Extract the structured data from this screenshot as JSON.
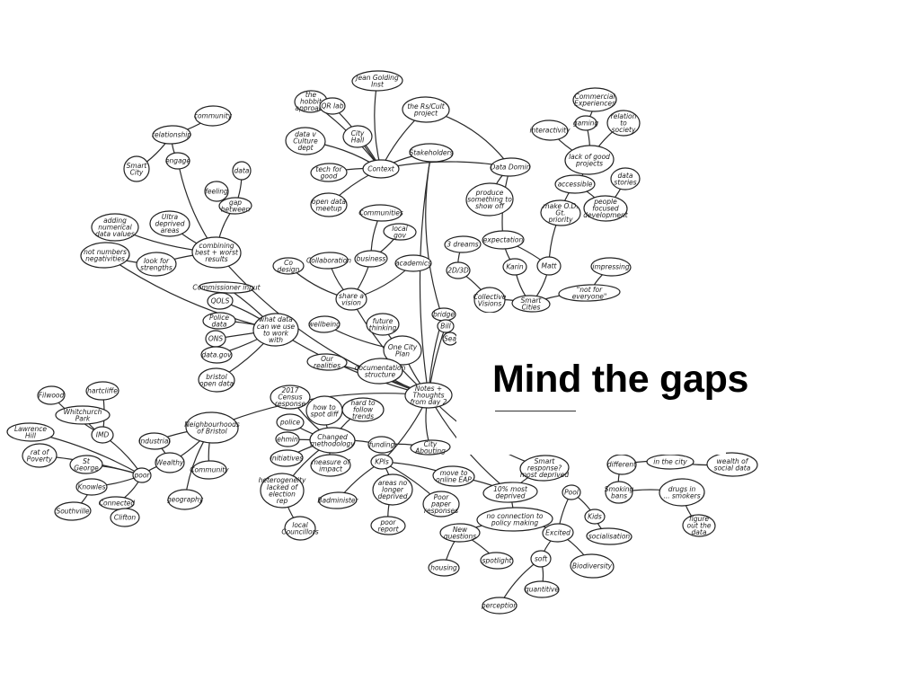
{
  "slide": {
    "title": "Mind the gaps"
  },
  "mindmap": {
    "nodes": [
      {
        "id": "hobbit",
        "text": "the hobbit approach"
      },
      {
        "id": "jean",
        "text": "Jean Golding Inst"
      },
      {
        "id": "qrlab",
        "text": "QR lab"
      },
      {
        "id": "rsc",
        "text": "the Rs/Cult project"
      },
      {
        "id": "datavc",
        "text": "data v Culture dept"
      },
      {
        "id": "cityhall",
        "text": "City Hall"
      },
      {
        "id": "techgood",
        "text": "tech for good"
      },
      {
        "id": "context",
        "text": "Context"
      },
      {
        "id": "opendata",
        "text": "open data meetup"
      },
      {
        "id": "stake",
        "text": "Stakeholders"
      },
      {
        "id": "datadom",
        "text": "Data Domin"
      },
      {
        "id": "commercial",
        "text": "Commercial Experiences"
      },
      {
        "id": "gaming",
        "text": "gaming"
      },
      {
        "id": "relation",
        "text": "relation to society"
      },
      {
        "id": "interact",
        "text": "interactivity"
      },
      {
        "id": "lackgood",
        "text": "lack of good projects"
      },
      {
        "id": "datastories",
        "text": "data stories"
      },
      {
        "id": "accessible",
        "text": "accessible"
      },
      {
        "id": "peoplefocused",
        "text": "people focused development"
      },
      {
        "id": "makeod",
        "text": "make O.D. Gt. priority"
      },
      {
        "id": "producesomething",
        "text": "produce something to show off"
      },
      {
        "id": "expectation",
        "text": "expectation"
      },
      {
        "id": "karin",
        "text": "Karin"
      },
      {
        "id": "matt",
        "text": "Matt"
      },
      {
        "id": "impressing",
        "text": "impressing"
      },
      {
        "id": "notforeveryone",
        "text": "\"not for everyone\""
      },
      {
        "id": "threedreams",
        "text": "3 dreams"
      },
      {
        "id": "twod",
        "text": "2D/3D"
      },
      {
        "id": "collectivevisions",
        "text": "Collective Visions"
      },
      {
        "id": "smartcities",
        "text": "Smart Cities"
      },
      {
        "id": "relationship",
        "text": "relationship"
      },
      {
        "id": "community",
        "text": "community"
      },
      {
        "id": "smartcity",
        "text": "Smart City"
      },
      {
        "id": "engage",
        "text": "engage"
      },
      {
        "id": "feeling",
        "text": "feeling"
      },
      {
        "id": "data",
        "text": "data"
      },
      {
        "id": "gapbetween",
        "text": "gap between"
      },
      {
        "id": "adding",
        "text": "adding numerical data values"
      },
      {
        "id": "deprived",
        "text": "Ultra deprived areas"
      },
      {
        "id": "combining",
        "text": "combining best + worst results"
      },
      {
        "id": "notnumbers",
        "text": "not numbers negativities"
      },
      {
        "id": "lookfor",
        "text": "look for strengths"
      },
      {
        "id": "codesign",
        "text": "Co design"
      },
      {
        "id": "communitiesN",
        "text": "Communities"
      },
      {
        "id": "localgov",
        "text": "local gov"
      },
      {
        "id": "collaboration",
        "text": "Collaboration"
      },
      {
        "id": "business",
        "text": "business"
      },
      {
        "id": "academics",
        "text": "academics"
      },
      {
        "id": "sharevision",
        "text": "share a vision"
      },
      {
        "id": "commissioner",
        "text": "Commissioner input"
      },
      {
        "id": "qols",
        "text": "QOLS"
      },
      {
        "id": "police",
        "text": "Police data"
      },
      {
        "id": "ons",
        "text": "ONS"
      },
      {
        "id": "datagov",
        "text": "data.gov"
      },
      {
        "id": "bristolopen",
        "text": "bristol open data"
      },
      {
        "id": "whatdata",
        "text": "what data can we use to work with"
      },
      {
        "id": "wellbeing",
        "text": "wellbeing"
      },
      {
        "id": "futurethinking",
        "text": "future thinking"
      },
      {
        "id": "onecity",
        "text": "One City Plan"
      },
      {
        "id": "ourrealities",
        "text": "Our realities"
      },
      {
        "id": "documentation",
        "text": "documentation structure"
      },
      {
        "id": "notes",
        "text": "Notes + Thoughts from day 2"
      },
      {
        "id": "bridge",
        "text": "bridge"
      },
      {
        "id": "bill",
        "text": "Bill"
      },
      {
        "id": "sea",
        "text": "Sea"
      },
      {
        "id": "filwood",
        "text": "Filwood"
      },
      {
        "id": "hartcliffe",
        "text": "hartcliffe"
      },
      {
        "id": "whitchurch",
        "text": "Whitchurch Park"
      },
      {
        "id": "lawrence",
        "text": "Lawrence Hill"
      },
      {
        "id": "imd",
        "text": "IMD"
      },
      {
        "id": "ratofpoverty",
        "text": "rat of Poverty"
      },
      {
        "id": "stgeorge",
        "text": "St George"
      },
      {
        "id": "knowles",
        "text": "Knowles"
      },
      {
        "id": "connected",
        "text": "Connected"
      },
      {
        "id": "poor",
        "text": "poor"
      },
      {
        "id": "southville",
        "text": "Southville"
      },
      {
        "id": "clifton",
        "text": "Clifton"
      },
      {
        "id": "wealthy",
        "text": "Wealthy"
      },
      {
        "id": "industrial",
        "text": "industrial"
      },
      {
        "id": "neighbourhoods",
        "text": "Neighbourhoods of Bristol"
      },
      {
        "id": "communityL",
        "text": "Community"
      },
      {
        "id": "geography",
        "text": "geography"
      },
      {
        "id": "census2017",
        "text": "2017 Census response"
      },
      {
        "id": "police2",
        "text": "police"
      },
      {
        "id": "ehmin",
        "text": "ehmin"
      },
      {
        "id": "initiatives",
        "text": "initiatives"
      },
      {
        "id": "howto",
        "text": "how to spot diff"
      },
      {
        "id": "hardtofollow",
        "text": "hard to follow trends"
      },
      {
        "id": "changed",
        "text": "Changed methodology"
      },
      {
        "id": "funding",
        "text": "funding"
      },
      {
        "id": "cityaboutiting",
        "text": "City Abouting"
      },
      {
        "id": "measure",
        "text": "measure of impact"
      },
      {
        "id": "kpis",
        "text": "KPIs"
      },
      {
        "id": "heterogeneity",
        "text": "heterogeneity lacked of election rep"
      },
      {
        "id": "localcouncillors",
        "text": "local Councillors"
      },
      {
        "id": "badminister",
        "text": "Badminister"
      },
      {
        "id": "areas",
        "text": "areas no longer deprived"
      },
      {
        "id": "poorpaper",
        "text": "Poor paper responses"
      },
      {
        "id": "poorreport",
        "text": "poor report"
      },
      {
        "id": "moreandeco",
        "text": "move to online EAP"
      },
      {
        "id": "tenmost",
        "text": "10% most deprived"
      },
      {
        "id": "noconnection",
        "text": "no connection to policy making"
      },
      {
        "id": "newquestions",
        "text": "New questions"
      },
      {
        "id": "housing",
        "text": "housing"
      },
      {
        "id": "spotlight",
        "text": "spotlight"
      },
      {
        "id": "excited",
        "text": "Excited"
      },
      {
        "id": "soft",
        "text": "soft"
      },
      {
        "id": "perception",
        "text": "perception"
      },
      {
        "id": "quantitive",
        "text": "quantitive"
      },
      {
        "id": "biodiversity",
        "text": "Biodiversity"
      },
      {
        "id": "smart",
        "text": "Smart response? most deprived"
      },
      {
        "id": "pool",
        "text": "Pool"
      },
      {
        "id": "kids",
        "text": "Kids"
      },
      {
        "id": "socialisation",
        "text": "socialisation"
      },
      {
        "id": "different",
        "text": "different"
      },
      {
        "id": "smokingbans",
        "text": "Smoking bans"
      },
      {
        "id": "drugsin",
        "text": "drugs in ... smokers"
      },
      {
        "id": "inthecity",
        "text": "in the city"
      },
      {
        "id": "wealthsocial",
        "text": "wealth of social data"
      },
      {
        "id": "figurethe",
        "text": "figure out the data"
      }
    ]
  }
}
